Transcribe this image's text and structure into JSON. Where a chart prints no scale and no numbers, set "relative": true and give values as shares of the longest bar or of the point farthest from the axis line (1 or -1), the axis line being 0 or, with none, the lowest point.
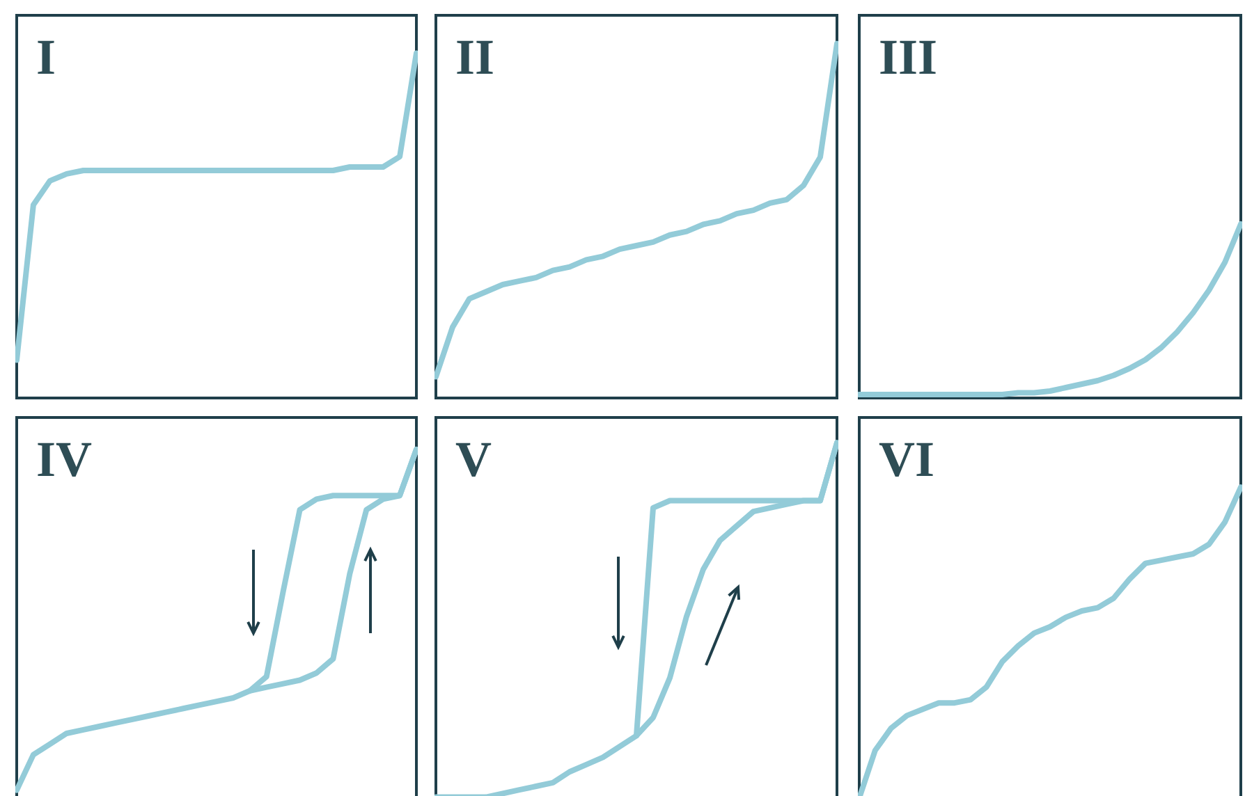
{
  "chart_data": [
    {
      "type": "line",
      "title": "I",
      "relative": true,
      "categories": [
        null,
        null,
        null,
        null,
        null,
        null,
        null,
        null,
        null,
        null,
        null,
        null,
        null,
        null,
        null,
        null,
        null,
        null,
        null,
        null,
        null,
        null,
        null,
        null,
        null
      ],
      "series": [
        {
          "color": "#93cbd8",
          "values": [
            0.11,
            0.56,
            0.63,
            0.65,
            0.66,
            0.66,
            0.66,
            0.66,
            0.66,
            0.66,
            0.66,
            0.66,
            0.66,
            0.66,
            0.66,
            0.66,
            0.66,
            0.66,
            0.66,
            0.66,
            0.67,
            0.67,
            0.67,
            0.7,
            1
          ]
        }
      ]
    },
    {
      "type": "line",
      "title": "II",
      "relative": true,
      "categories": [
        null,
        null,
        null,
        null,
        null,
        null,
        null,
        null,
        null,
        null,
        null,
        null,
        null,
        null,
        null,
        null,
        null,
        null,
        null,
        null,
        null,
        null,
        null,
        null,
        null
      ],
      "series": [
        {
          "color": "#93cbd8",
          "values": [
            0.06,
            0.2,
            0.28,
            0.3,
            0.32,
            0.33,
            0.34,
            0.36,
            0.37,
            0.39,
            0.4,
            0.42,
            0.43,
            0.44,
            0.46,
            0.47,
            0.49,
            0.5,
            0.52,
            0.53,
            0.55,
            0.56,
            0.6,
            0.68,
            1
          ]
        }
      ]
    },
    {
      "type": "line",
      "title": "III",
      "relative": true,
      "categories": [
        null,
        null,
        null,
        null,
        null,
        null,
        null,
        null,
        null,
        null,
        null,
        null,
        null,
        null,
        null,
        null,
        null,
        null,
        null,
        null,
        null,
        null,
        null,
        null,
        null
      ],
      "series": [
        {
          "color": "#93cbd8",
          "values": [
            0.02,
            0.02,
            0.02,
            0.02,
            0.02,
            0.02,
            0.02,
            0.02,
            0.02,
            0.02,
            0.03,
            0.03,
            0.04,
            0.06,
            0.08,
            0.1,
            0.13,
            0.17,
            0.22,
            0.29,
            0.38,
            0.49,
            0.62,
            0.78,
            1
          ]
        }
      ]
    },
    {
      "type": "line",
      "title": "IV",
      "relative": true,
      "categories": [
        null,
        null,
        null,
        null,
        null,
        null,
        null,
        null,
        null,
        null,
        null,
        null,
        null,
        null,
        null,
        null,
        null,
        null,
        null,
        null,
        null,
        null,
        null,
        null,
        null
      ],
      "series": [
        {
          "color": "#93cbd8",
          "values": [
            0.04,
            0.14,
            0.17,
            0.2,
            0.21,
            0.22,
            0.23,
            0.24,
            0.25,
            0.26,
            0.27,
            0.28,
            0.29,
            0.3,
            0.32,
            0.33,
            0.34,
            0.35,
            0.37,
            0.41,
            0.65,
            0.83,
            0.86,
            0.87,
            1
          ]
        },
        {
          "color": "#93cbd8",
          "values": [
            null,
            null,
            null,
            null,
            null,
            null,
            null,
            null,
            null,
            null,
            null,
            null,
            null,
            null,
            0.32,
            0.36,
            0.6,
            0.83,
            0.86,
            0.87,
            0.87,
            0.87,
            0.87,
            0.87,
            1
          ]
        }
      ]
    },
    {
      "type": "line",
      "title": "V",
      "relative": true,
      "categories": [
        null,
        null,
        null,
        null,
        null,
        null,
        null,
        null,
        null,
        null,
        null,
        null,
        null,
        null,
        null,
        null,
        null,
        null,
        null,
        null,
        null,
        null,
        null,
        null,
        null
      ],
      "series": [
        {
          "color": "#93cbd8",
          "values": [
            0.02,
            0.02,
            0.02,
            0.02,
            0.03,
            0.04,
            0.05,
            0.06,
            0.09,
            0.11,
            0.13,
            0.16,
            0.19,
            0.24,
            0.35,
            0.52,
            0.65,
            0.73,
            0.77,
            0.81,
            0.82,
            0.83,
            0.84,
            0.84,
            1
          ]
        },
        {
          "color": "#93cbd8",
          "values": [
            null,
            null,
            null,
            null,
            null,
            null,
            null,
            null,
            null,
            null,
            null,
            null,
            0.19,
            0.82,
            0.84,
            0.84,
            0.84,
            0.84,
            0.84,
            0.84,
            0.84,
            0.84,
            0.84,
            0.84,
            1
          ]
        }
      ]
    },
    {
      "type": "line",
      "title": "VI",
      "relative": true,
      "categories": [
        null,
        null,
        null,
        null,
        null,
        null,
        null,
        null,
        null,
        null,
        null,
        null,
        null,
        null,
        null,
        null,
        null,
        null,
        null,
        null,
        null,
        null,
        null,
        null,
        null
      ],
      "series": [
        {
          "color": "#93cbd8",
          "values": [
            0.02,
            0.17,
            0.24,
            0.28,
            0.3,
            0.32,
            0.32,
            0.33,
            0.37,
            0.45,
            0.5,
            0.54,
            0.56,
            0.59,
            0.61,
            0.62,
            0.65,
            0.71,
            0.76,
            0.77,
            0.78,
            0.79,
            0.82,
            0.89,
            1
          ]
        }
      ]
    }
  ]
}
